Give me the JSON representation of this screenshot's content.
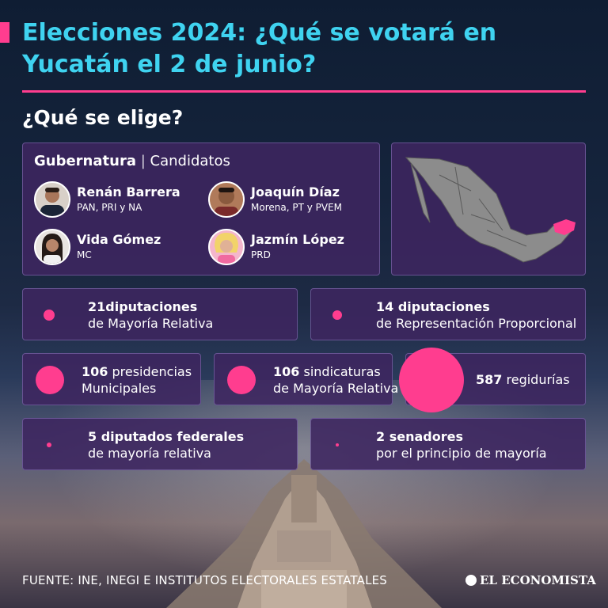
{
  "header": {
    "title_line1": "Elecciones 2024: ¿Qué se votará en",
    "title_line2": "Yucatán el 2 de junio?",
    "subtitle": "¿Qué se elige?"
  },
  "colors": {
    "accent": "#ff3d8f",
    "title": "#3fd3f0",
    "card": "#3e2660"
  },
  "governor": {
    "heading": "Gubernatura",
    "separator": "|",
    "subheading": "Candidatos",
    "candidates": [
      {
        "name": "Renán Barrera",
        "party": "PAN, PRI y NA"
      },
      {
        "name": "Joaquín Díaz",
        "party": "Morena, PT y PVEM"
      },
      {
        "name": "Vida Gómez",
        "party": "MC"
      },
      {
        "name": "Jazmín López",
        "party": "PRD"
      }
    ]
  },
  "map": {
    "icon": "mexico-map-icon",
    "highlight": "Yucatán"
  },
  "stats": [
    {
      "number": "21",
      "line1": "diputaciones",
      "line2": "de Mayoría Relativa"
    },
    {
      "number": "14",
      "line1": " diputaciones",
      "line2": "de Representación Proporcional"
    },
    {
      "number": "106",
      "line1": " presidencias",
      "line2": "Municipales"
    },
    {
      "number": "106",
      "line1": " sindicaturas",
      "line2": "de Mayoría Relativa"
    },
    {
      "number": "587",
      "line1": " regidurías",
      "line2": ""
    },
    {
      "number": "5",
      "line1": " diputados federales",
      "line2": "de mayoría relativa"
    },
    {
      "number": "2",
      "line1": " senadores",
      "line2": "por el principio de mayoría"
    }
  ],
  "footer": {
    "source": "FUENTE: INE, INEGI E INSTITUTOS ELECTORALES ESTATALES",
    "logo": "EL ECONOMISTA"
  }
}
